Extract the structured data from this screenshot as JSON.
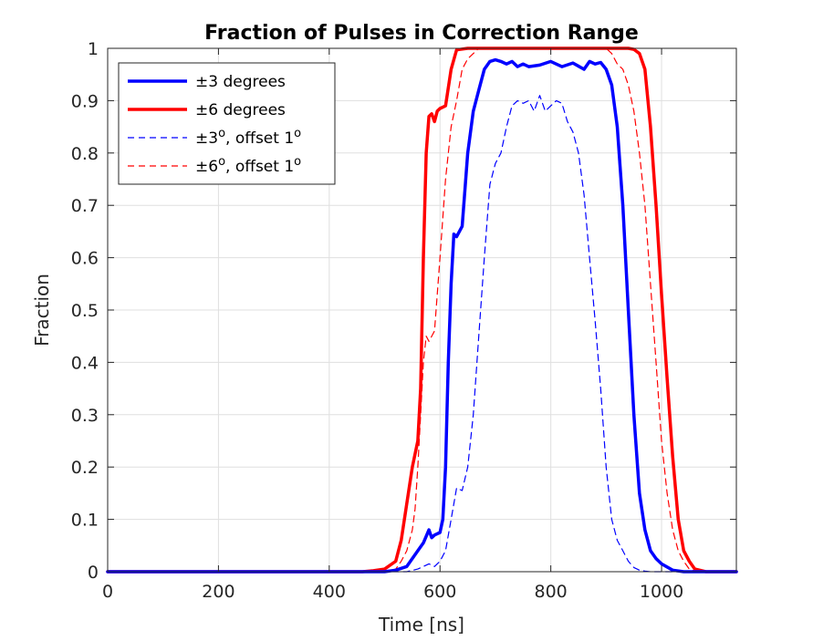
{
  "chart_data": {
    "type": "line",
    "title": "Fraction of Pulses in Correction Range",
    "xlabel": "Time [ns]",
    "ylabel": "Fraction",
    "xlim": [
      0,
      1135
    ],
    "ylim": [
      0,
      1
    ],
    "xticks": [
      0,
      200,
      400,
      600,
      800,
      1000
    ],
    "xtick_labels": [
      "0",
      "200",
      "400",
      "600",
      "800",
      "1000"
    ],
    "yticks": [
      0,
      0.1,
      0.2,
      0.3,
      0.4,
      0.5,
      0.6,
      0.7,
      0.8,
      0.9,
      1
    ],
    "ytick_labels": [
      "0",
      "0.1",
      "0.2",
      "0.3",
      "0.4",
      "0.5",
      "0.6",
      "0.7",
      "0.8",
      "0.9",
      "1"
    ],
    "grid": true,
    "legend_position": "top-left",
    "series": [
      {
        "name": "±3 degrees",
        "color": "#0000ff",
        "style": "solid",
        "x": [
          0,
          480,
          500,
          520,
          540,
          560,
          570,
          580,
          585,
          590,
          600,
          605,
          610,
          615,
          620,
          625,
          630,
          640,
          650,
          660,
          670,
          680,
          690,
          700,
          710,
          720,
          730,
          740,
          750,
          760,
          780,
          800,
          820,
          840,
          860,
          870,
          880,
          890,
          900,
          910,
          920,
          930,
          940,
          950,
          960,
          970,
          980,
          990,
          1000,
          1020,
          1040,
          1060,
          1135
        ],
        "y": [
          0,
          0,
          0,
          0.003,
          0.01,
          0.04,
          0.055,
          0.08,
          0.065,
          0.07,
          0.075,
          0.1,
          0.2,
          0.4,
          0.55,
          0.645,
          0.64,
          0.66,
          0.8,
          0.88,
          0.92,
          0.96,
          0.975,
          0.978,
          0.975,
          0.97,
          0.975,
          0.965,
          0.97,
          0.965,
          0.968,
          0.975,
          0.965,
          0.972,
          0.96,
          0.975,
          0.97,
          0.973,
          0.96,
          0.93,
          0.85,
          0.7,
          0.5,
          0.3,
          0.15,
          0.08,
          0.04,
          0.025,
          0.015,
          0.003,
          0,
          0,
          0
        ]
      },
      {
        "name": "±6 degrees",
        "color": "#ff0000",
        "style": "solid",
        "x": [
          0,
          460,
          480,
          500,
          520,
          530,
          540,
          550,
          560,
          565,
          570,
          575,
          580,
          585,
          590,
          595,
          600,
          610,
          620,
          630,
          650,
          700,
          750,
          800,
          850,
          900,
          920,
          940,
          950,
          960,
          970,
          980,
          990,
          1000,
          1010,
          1020,
          1030,
          1040,
          1050,
          1060,
          1080,
          1135
        ],
        "y": [
          0,
          0,
          0.002,
          0.005,
          0.02,
          0.06,
          0.13,
          0.2,
          0.25,
          0.35,
          0.6,
          0.8,
          0.87,
          0.875,
          0.86,
          0.88,
          0.885,
          0.89,
          0.96,
          0.997,
          1,
          1,
          1,
          1,
          1,
          1,
          1,
          1,
          0.998,
          0.99,
          0.96,
          0.85,
          0.7,
          0.53,
          0.37,
          0.22,
          0.1,
          0.04,
          0.02,
          0.005,
          0,
          0
        ]
      },
      {
        "name": "±3°, offset 1°",
        "color": "#0000ff",
        "style": "dashed",
        "x": [
          0,
          540,
          560,
          570,
          580,
          590,
          600,
          610,
          620,
          630,
          640,
          650,
          660,
          670,
          680,
          690,
          700,
          710,
          720,
          730,
          740,
          750,
          760,
          770,
          780,
          790,
          800,
          810,
          820,
          830,
          840,
          850,
          860,
          870,
          880,
          890,
          900,
          910,
          920,
          930,
          940,
          950,
          960,
          970,
          980,
          990,
          1000,
          1020,
          1135
        ],
        "y": [
          0,
          0,
          0.005,
          0.01,
          0.015,
          0.01,
          0.02,
          0.04,
          0.1,
          0.16,
          0.155,
          0.2,
          0.3,
          0.45,
          0.6,
          0.74,
          0.78,
          0.8,
          0.85,
          0.89,
          0.9,
          0.895,
          0.9,
          0.88,
          0.91,
          0.88,
          0.89,
          0.9,
          0.895,
          0.86,
          0.84,
          0.8,
          0.72,
          0.6,
          0.48,
          0.35,
          0.2,
          0.1,
          0.06,
          0.04,
          0.02,
          0.008,
          0.003,
          0.001,
          0,
          0,
          0,
          0,
          0
        ]
      },
      {
        "name": "±6°, offset 1°",
        "color": "#ff0000",
        "style": "dashed",
        "x": [
          0,
          500,
          520,
          530,
          540,
          550,
          555,
          560,
          565,
          570,
          575,
          580,
          590,
          600,
          610,
          620,
          630,
          640,
          650,
          660,
          670,
          680,
          700,
          750,
          800,
          850,
          900,
          910,
          920,
          930,
          940,
          950,
          960,
          970,
          980,
          990,
          1000,
          1010,
          1020,
          1030,
          1040,
          1050,
          1060,
          1135
        ],
        "y": [
          0,
          0,
          0.005,
          0.02,
          0.04,
          0.08,
          0.12,
          0.2,
          0.3,
          0.4,
          0.45,
          0.44,
          0.46,
          0.6,
          0.75,
          0.85,
          0.9,
          0.96,
          0.98,
          0.99,
          1,
          1,
          1,
          1,
          1,
          1,
          1,
          0.99,
          0.97,
          0.96,
          0.93,
          0.88,
          0.8,
          0.7,
          0.55,
          0.4,
          0.25,
          0.15,
          0.08,
          0.04,
          0.02,
          0.005,
          0.001,
          0
        ]
      }
    ],
    "legend": [
      {
        "text": "±3 degrees",
        "style": "solid",
        "color": "#0000ff"
      },
      {
        "text": "±6 degrees",
        "style": "solid",
        "color": "#ff0000"
      },
      {
        "text": "±3",
        "sup1": "o",
        "mid": ", offset 1",
        "sup2": "o",
        "style": "dashed",
        "color": "#0000ff"
      },
      {
        "text": "±6",
        "sup1": "o",
        "mid": ", offset 1",
        "sup2": "o",
        "style": "dashed",
        "color": "#ff0000"
      }
    ]
  }
}
